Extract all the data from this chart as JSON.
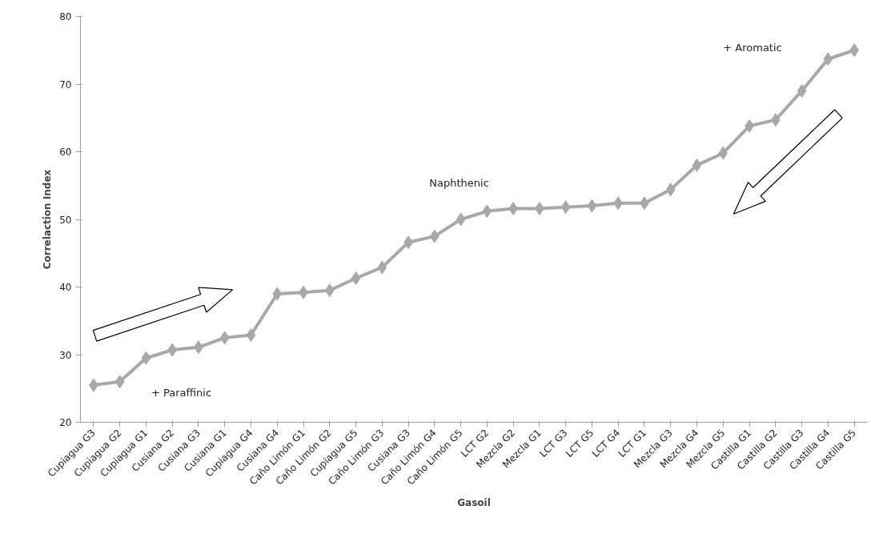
{
  "chart_data": {
    "type": "line",
    "xlabel": "Gasoil",
    "ylabel": "Correlaction Index",
    "categories": [
      "Cupiagua G3",
      "Cupiagua G2",
      "Cupiagua G1",
      "Cusiana G2",
      "Cusiana G3",
      "Cusiana G1",
      "Cupiagua G4",
      "Cusiana G4",
      "Caño Limón G1",
      "Caño Limón G2",
      "Cupiagua G5",
      "Caño Limón G3",
      "Cusiana G3",
      "Caño Limón G4",
      "Caño Limón G5",
      "LCT G2",
      "Mezcla G2",
      "Mezcla G1",
      "LCT G3",
      "LCT G5",
      "LCT G4",
      "LCT G1",
      "Mezcla G3",
      "Mezcla G4",
      "Mezcla G5",
      "Castilla G1",
      "Castilla G2",
      "Castilla G3",
      "Castilla G4",
      "Castilla G5"
    ],
    "series": [
      {
        "color": "#a7a8ab",
        "values": [
          25.5,
          26,
          29.5,
          30.7,
          31.1,
          32.5,
          32.9,
          39,
          39.2,
          39.5,
          41.3,
          42.9,
          46.6,
          47.5,
          50,
          51.2,
          51.6,
          51.6,
          51.8,
          52,
          52.4,
          52.4,
          54.4,
          58,
          59.8,
          63.8,
          64.7,
          69,
          73.7,
          75
        ]
      }
    ],
    "ylim": [
      20,
      80
    ],
    "yticks": [
      20,
      30,
      40,
      50,
      60,
      70,
      80
    ],
    "grid": false,
    "marker": "diamond",
    "line_style": "solid",
    "annotations": [
      "+ Paraffinic",
      "Naphthenic",
      "+ Aromatic"
    ]
  }
}
